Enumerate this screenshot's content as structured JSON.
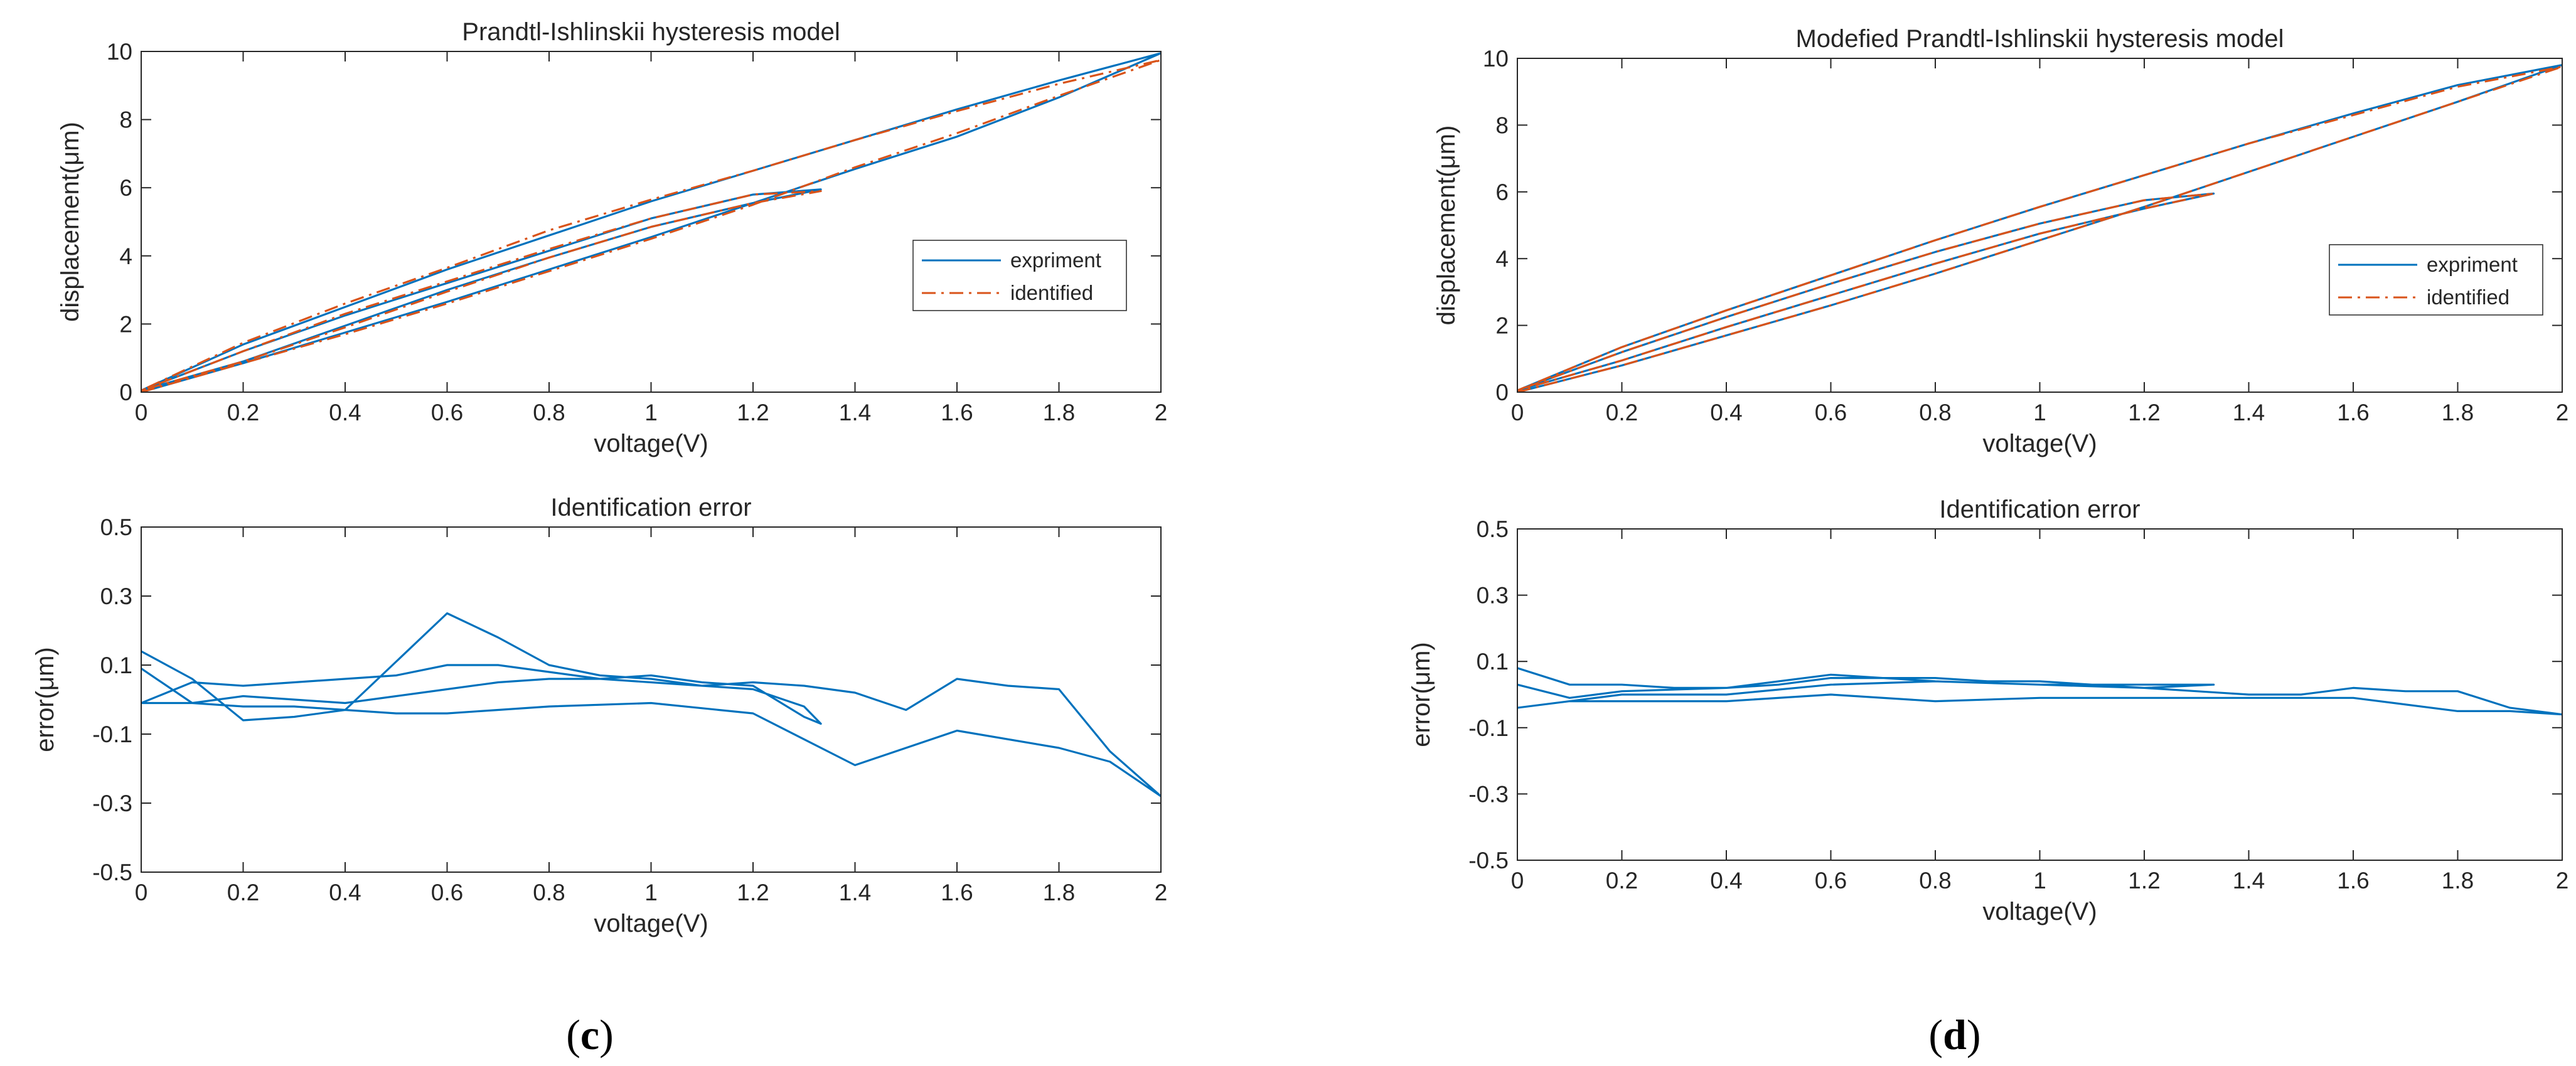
{
  "colors": {
    "experiment": "#0072BD",
    "identified": "#D95319",
    "axis": "#262626",
    "text": "#262626"
  },
  "captions": {
    "c_open": "(",
    "c_letter": "c",
    "c_close": ")",
    "d_open": "(",
    "d_letter": "d",
    "d_close": ")"
  },
  "chart_data": [
    {
      "id": "c-top",
      "type": "line",
      "title": "Prandtl-Ishlinskii hysteresis model",
      "xlabel": "voltage(V)",
      "ylabel": "displacement(μm)",
      "xlim": [
        0,
        2
      ],
      "ylim": [
        0,
        10
      ],
      "xticks": [
        0,
        0.2,
        0.4,
        0.6,
        0.8,
        1,
        1.2,
        1.4,
        1.6,
        1.8,
        2
      ],
      "xtick_labels": [
        "0",
        "0.2",
        "0.4",
        "0.6",
        "0.8",
        "1",
        "1.2",
        "1.4",
        "1.6",
        "1.8",
        "2"
      ],
      "yticks": [
        0,
        2,
        4,
        6,
        8,
        10
      ],
      "ytick_labels": [
        "0",
        "2",
        "4",
        "6",
        "8",
        "10"
      ],
      "legend": {
        "position": "center-right",
        "entries": [
          "expriment",
          "identified"
        ]
      },
      "series": [
        {
          "name": "expriment",
          "style": "solid",
          "color": "#0072BD",
          "x": [
            0,
            0.2,
            0.4,
            0.6,
            0.8,
            1,
            1.2,
            1.4,
            1.6,
            1.8,
            2,
            1.8,
            1.6,
            1.4,
            1.2,
            1,
            0.8,
            0.6,
            0.4,
            0.2,
            0,
            0.2,
            0.4,
            0.6,
            0.8,
            1,
            1.2,
            1.333,
            1.2,
            1,
            0.8,
            0.6,
            0.4,
            0.2,
            0
          ],
          "y": [
            0,
            0.85,
            1.75,
            2.65,
            3.6,
            4.55,
            5.55,
            6.55,
            7.5,
            8.65,
            9.95,
            9.15,
            8.3,
            7.4,
            6.5,
            5.6,
            4.6,
            3.6,
            2.5,
            1.4,
            0.05,
            0.9,
            1.95,
            3.0,
            3.95,
            4.85,
            5.55,
            5.95,
            5.8,
            5.1,
            4.15,
            3.2,
            2.25,
            1.2,
            0.05
          ]
        },
        {
          "name": "identified",
          "style": "dashdot",
          "color": "#D95319",
          "x": [
            0,
            0.2,
            0.4,
            0.6,
            0.8,
            1,
            1.2,
            1.4,
            1.6,
            1.8,
            2,
            1.8,
            1.6,
            1.4,
            1.2,
            1,
            0.8,
            0.6,
            0.4,
            0.2,
            0,
            0.2,
            0.4,
            0.6,
            0.8,
            1,
            1.2,
            1.333,
            1.2,
            1,
            0.8,
            0.6,
            0.4,
            0.2,
            0
          ],
          "y": [
            0,
            0.85,
            1.7,
            2.6,
            3.55,
            4.5,
            5.5,
            6.6,
            7.6,
            8.7,
            9.75,
            9.05,
            8.25,
            7.4,
            6.5,
            5.65,
            4.75,
            3.65,
            2.6,
            1.45,
            0.05,
            0.9,
            1.9,
            2.95,
            3.95,
            4.85,
            5.55,
            5.9,
            5.8,
            5.1,
            4.2,
            3.25,
            2.3,
            1.2,
            0.05
          ]
        }
      ]
    },
    {
      "id": "c-bottom",
      "type": "line",
      "title": "Identification error",
      "xlabel": "voltage(V)",
      "ylabel": "error(μm)",
      "xlim": [
        0,
        2
      ],
      "ylim": [
        -0.5,
        0.5
      ],
      "xticks": [
        0,
        0.2,
        0.4,
        0.6,
        0.8,
        1,
        1.2,
        1.4,
        1.6,
        1.8,
        2
      ],
      "xtick_labels": [
        "0",
        "0.2",
        "0.4",
        "0.6",
        "0.8",
        "1",
        "1.2",
        "1.4",
        "1.6",
        "1.8",
        "2"
      ],
      "yticks": [
        -0.5,
        -0.3,
        -0.1,
        0.1,
        0.3,
        0.5
      ],
      "ytick_labels": [
        "-0.5",
        "-0.3",
        "-0.1",
        "0.1",
        "0.3",
        "0.5"
      ],
      "series": [
        {
          "name": "error",
          "style": "solid",
          "color": "#0072BD",
          "x": [
            0,
            0.1,
            0.2,
            0.3,
            0.4,
            0.5,
            0.6,
            0.7,
            0.8,
            0.9,
            1,
            1.1,
            1.2,
            1.3,
            1.4,
            1.5,
            1.6,
            1.7,
            1.8,
            1.9,
            2,
            1.9,
            1.8,
            1.6,
            1.4,
            1.2,
            1,
            0.8,
            0.7,
            0.6,
            0.5,
            0.4,
            0.3,
            0.2,
            0.1,
            0,
            0.1,
            0.2,
            0.3,
            0.4,
            0.5,
            0.6,
            0.7,
            0.8,
            0.9,
            1,
            1.1,
            1.2,
            1.3,
            1.333,
            1.3,
            1.2,
            1.1,
            1,
            0.9,
            0.8,
            0.7,
            0.6,
            0.5,
            0.4,
            0.3,
            0.2,
            0.1,
            0
          ],
          "y": [
            0.14,
            0.06,
            -0.06,
            -0.05,
            -0.03,
            0.11,
            0.25,
            0.18,
            0.1,
            0.07,
            0.06,
            0.04,
            0.05,
            0.04,
            0.02,
            -0.03,
            0.06,
            0.04,
            0.03,
            -0.15,
            -0.28,
            -0.18,
            -0.14,
            -0.09,
            -0.19,
            -0.04,
            -0.01,
            -0.02,
            -0.03,
            -0.04,
            -0.04,
            -0.03,
            -0.02,
            -0.02,
            -0.01,
            -0.01,
            0.05,
            0.04,
            0.05,
            0.06,
            0.07,
            0.1,
            0.1,
            0.08,
            0.06,
            0.05,
            0.04,
            0.03,
            -0.02,
            -0.07,
            -0.05,
            0.04,
            0.05,
            0.07,
            0.06,
            0.06,
            0.05,
            0.03,
            0.01,
            -0.01,
            0.0,
            0.01,
            -0.01,
            0.09
          ]
        }
      ]
    },
    {
      "id": "d-top",
      "type": "line",
      "title": "Modefied Prandtl-Ishlinskii hysteresis model",
      "xlabel": "voltage(V)",
      "ylabel": "displacement(μm)",
      "xlim": [
        0,
        2
      ],
      "ylim": [
        0,
        10
      ],
      "xticks": [
        0,
        0.2,
        0.4,
        0.6,
        0.8,
        1,
        1.2,
        1.4,
        1.6,
        1.8,
        2
      ],
      "xtick_labels": [
        "0",
        "0.2",
        "0.4",
        "0.6",
        "0.8",
        "1",
        "1.2",
        "1.4",
        "1.6",
        "1.8",
        "2"
      ],
      "yticks": [
        0,
        2,
        4,
        6,
        8,
        10
      ],
      "ytick_labels": [
        "0",
        "2",
        "4",
        "6",
        "8",
        "10"
      ],
      "legend": {
        "position": "center-right",
        "entries": [
          "expriment",
          "identified"
        ]
      },
      "series": [
        {
          "name": "expriment",
          "style": "solid",
          "color": "#0072BD",
          "x": [
            0,
            0.2,
            0.4,
            0.6,
            0.8,
            1,
            1.2,
            1.4,
            1.6,
            1.8,
            2,
            1.8,
            1.6,
            1.4,
            1.2,
            1,
            0.8,
            0.6,
            0.4,
            0.2,
            0,
            0.2,
            0.4,
            0.6,
            0.8,
            1,
            1.2,
            1.333,
            1.2,
            1,
            0.8,
            0.6,
            0.4,
            0.2,
            0
          ],
          "y": [
            0,
            0.8,
            1.7,
            2.6,
            3.55,
            4.55,
            5.55,
            6.6,
            7.65,
            8.7,
            9.8,
            9.2,
            8.35,
            7.45,
            6.5,
            5.55,
            4.55,
            3.5,
            2.45,
            1.35,
            0.05,
            0.95,
            1.95,
            2.9,
            3.85,
            4.75,
            5.5,
            5.95,
            5.75,
            5.05,
            4.2,
            3.25,
            2.25,
            1.2,
            0.05
          ]
        },
        {
          "name": "identified",
          "style": "dashdot",
          "color": "#D95319",
          "x": [
            0,
            0.2,
            0.4,
            0.6,
            0.8,
            1,
            1.2,
            1.4,
            1.6,
            1.8,
            2,
            1.8,
            1.6,
            1.4,
            1.2,
            1,
            0.8,
            0.6,
            0.4,
            0.2,
            0,
            0.2,
            0.4,
            0.6,
            0.8,
            1,
            1.2,
            1.333,
            1.2,
            1,
            0.8,
            0.6,
            0.4,
            0.2,
            0
          ],
          "y": [
            0,
            0.8,
            1.7,
            2.6,
            3.55,
            4.55,
            5.55,
            6.6,
            7.65,
            8.7,
            9.75,
            9.15,
            8.3,
            7.45,
            6.5,
            5.55,
            4.55,
            3.5,
            2.45,
            1.35,
            0.05,
            0.95,
            1.95,
            2.9,
            3.85,
            4.75,
            5.5,
            5.95,
            5.75,
            5.05,
            4.2,
            3.25,
            2.25,
            1.2,
            0.05
          ]
        }
      ]
    },
    {
      "id": "d-bottom",
      "type": "line",
      "title": "Identification error",
      "xlabel": "voltage(V)",
      "ylabel": "error(μm)",
      "xlim": [
        0,
        2
      ],
      "ylim": [
        -0.5,
        0.5
      ],
      "xticks": [
        0,
        0.2,
        0.4,
        0.6,
        0.8,
        1,
        1.2,
        1.4,
        1.6,
        1.8,
        2
      ],
      "xtick_labels": [
        "0",
        "0.2",
        "0.4",
        "0.6",
        "0.8",
        "1",
        "1.2",
        "1.4",
        "1.6",
        "1.8",
        "2"
      ],
      "yticks": [
        -0.5,
        -0.3,
        -0.1,
        0.1,
        0.3,
        0.5
      ],
      "ytick_labels": [
        "-0.5",
        "-0.3",
        "-0.1",
        "0.1",
        "0.3",
        "0.5"
      ],
      "series": [
        {
          "name": "error",
          "style": "solid",
          "color": "#0072BD",
          "x": [
            0,
            0.1,
            0.2,
            0.3,
            0.4,
            0.5,
            0.6,
            0.7,
            0.8,
            0.9,
            1,
            1.1,
            1.2,
            1.3,
            1.4,
            1.5,
            1.6,
            1.7,
            1.8,
            1.9,
            2,
            1.9,
            1.8,
            1.6,
            1.4,
            1.2,
            1,
            0.8,
            0.6,
            0.4,
            0.2,
            0.1,
            0,
            0.1,
            0.2,
            0.4,
            0.6,
            0.8,
            1,
            1.2,
            1.333,
            1.2,
            1,
            0.8,
            0.6,
            0.4,
            0.2,
            0.1,
            0
          ],
          "y": [
            0.08,
            0.03,
            0.03,
            0.02,
            0.02,
            0.03,
            0.05,
            0.05,
            0.05,
            0.04,
            0.04,
            0.03,
            0.02,
            0.01,
            0.0,
            0.0,
            0.02,
            0.01,
            0.01,
            -0.04,
            -0.06,
            -0.05,
            -0.05,
            -0.01,
            -0.01,
            -0.01,
            -0.01,
            -0.02,
            0.0,
            -0.02,
            -0.02,
            -0.02,
            -0.04,
            -0.02,
            0.0,
            0.0,
            0.03,
            0.04,
            0.03,
            0.03,
            0.03,
            0.02,
            0.03,
            0.04,
            0.06,
            0.02,
            0.01,
            -0.01,
            0.03
          ]
        }
      ]
    }
  ]
}
